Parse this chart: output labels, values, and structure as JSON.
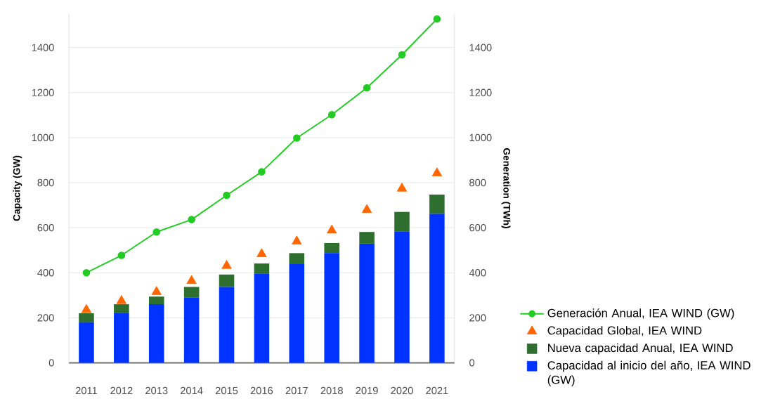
{
  "chart_data": {
    "type": "bar",
    "stacked": true,
    "categories": [
      "2011",
      "2012",
      "2013",
      "2014",
      "2015",
      "2016",
      "2017",
      "2018",
      "2019",
      "2020",
      "2021"
    ],
    "ylabel": "Capacity (GW)",
    "y2label": "Generation (TWh)",
    "ylim": [
      0,
      1550
    ],
    "yticks": [
      0,
      200,
      400,
      600,
      800,
      1000,
      1200,
      1400
    ],
    "y2lim": [
      0,
      1550
    ],
    "y2ticks": [
      0,
      200,
      400,
      600,
      800,
      1000,
      1200,
      1400
    ],
    "grid": "y",
    "legend": "right",
    "series": [
      {
        "name": "Capacidad al inicio del año, IEA WIND (GW)",
        "color": "#0033ff",
        "values": [
          180,
          220,
          260,
          291,
          337,
          395,
          438,
          487,
          529,
          584,
          661
        ]
      },
      {
        "name": "Nueva capacidad Anual, IEA WIND",
        "color": "#2e6e2e",
        "values": [
          40,
          40,
          34,
          46,
          55,
          46,
          49,
          45,
          52,
          86,
          86
        ]
      },
      {
        "type": "scatter",
        "name": "Capacidad Global, IEA WIND",
        "color": "#ff6600",
        "marker": "triangle",
        "values": [
          235,
          275,
          315,
          364,
          431,
          483,
          539,
          588,
          679,
          774,
          842
        ]
      },
      {
        "type": "line",
        "name": "Generación Anual, IEA WIND (GW)",
        "color": "#22cc22",
        "marker": "circle",
        "axis": "y2",
        "values": [
          400,
          477,
          581,
          636,
          744,
          848,
          998,
          1102,
          1221,
          1368,
          1527
        ]
      }
    ]
  }
}
